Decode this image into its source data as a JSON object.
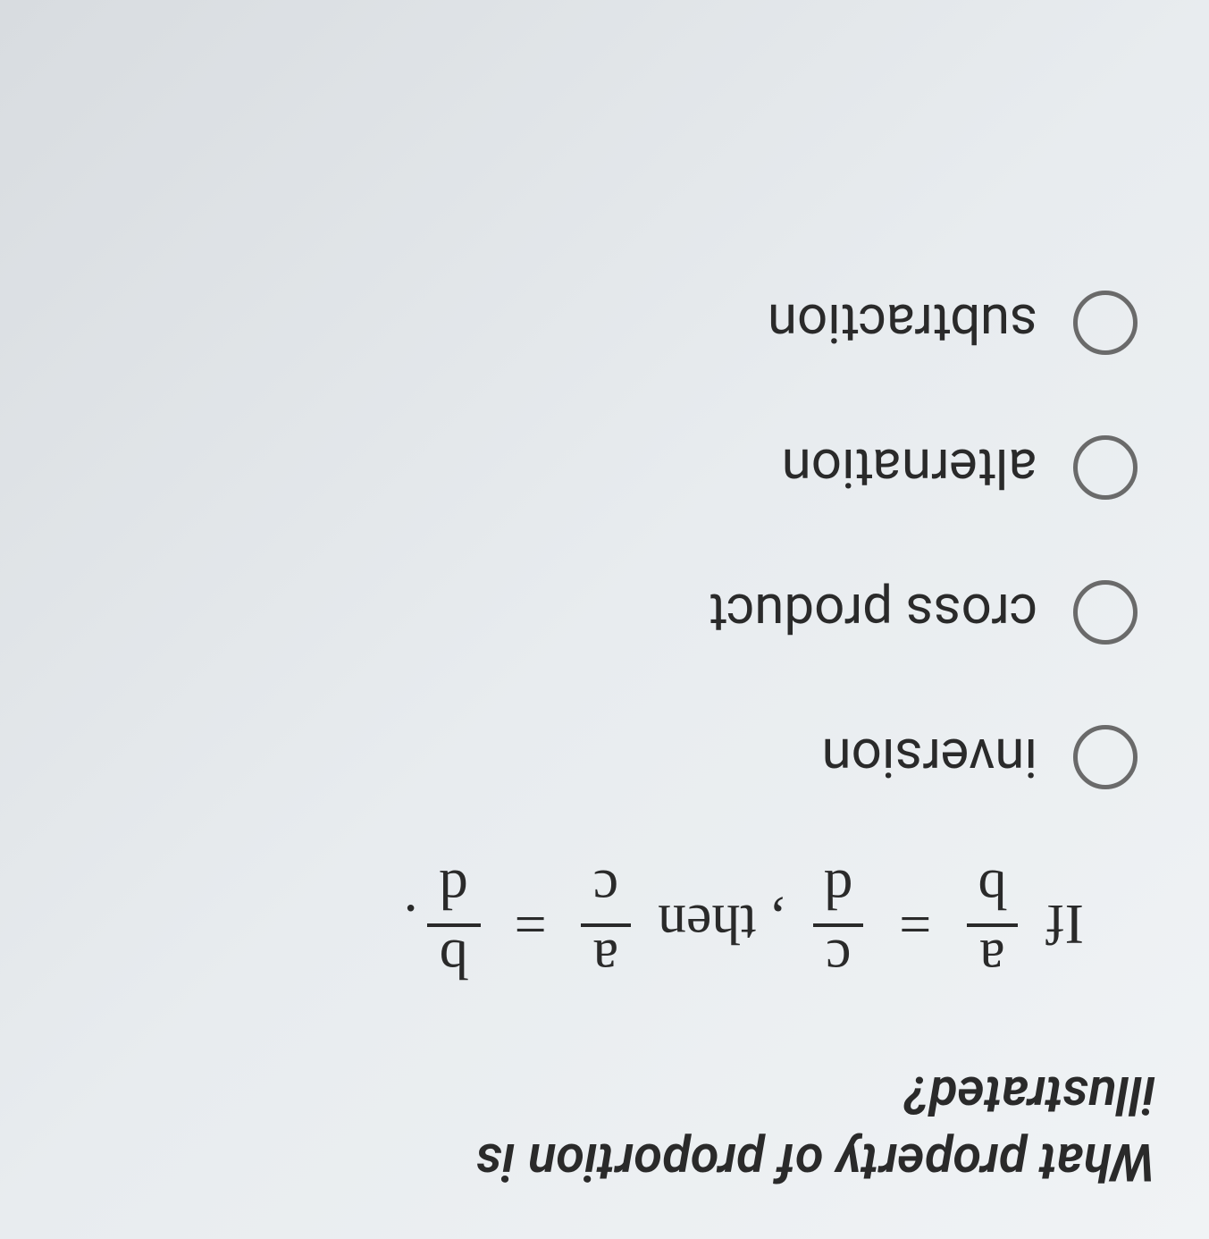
{
  "question": {
    "prompt_line1": "What property of proportion is",
    "prompt_line2": "illustrated?",
    "equation": {
      "prefix": "If",
      "frac1_num": "a",
      "frac1_den": "b",
      "op1": "=",
      "frac2_num": "c",
      "frac2_den": "d",
      "mid": ", then",
      "frac3_num": "a",
      "frac3_den": "c",
      "op2": "=",
      "frac4_num": "b",
      "frac4_den": "d",
      "suffix": "."
    }
  },
  "options": [
    {
      "label": "inversion"
    },
    {
      "label": "cross product"
    },
    {
      "label": "alternation"
    },
    {
      "label": "subtraction"
    }
  ],
  "colors": {
    "text": "#2a2a2a",
    "radio_border": "#6a6a6a",
    "bg_light": "#f0f3f5",
    "bg_dark": "#d8dce0"
  }
}
